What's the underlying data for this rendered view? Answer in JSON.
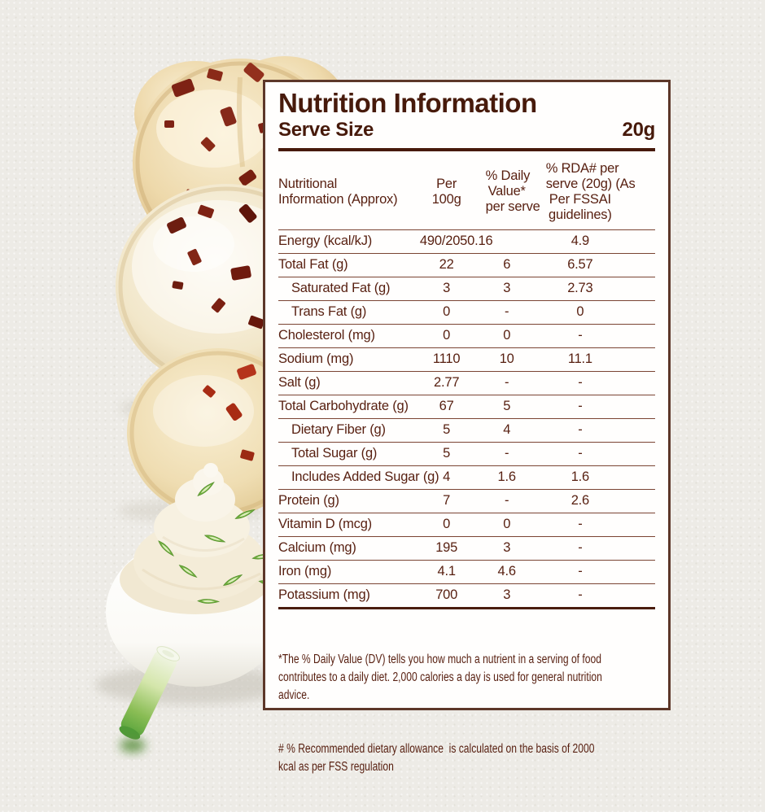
{
  "panel": {
    "title": "Nutrition Information",
    "serve_size_label": "Serve Size",
    "serve_size_value": "20g"
  },
  "table": {
    "headers": [
      "Nutritional\nInformation (Approx)",
      "Per\n100g",
      "% Daily\nValue*\nper serve",
      "% RDA# per\nserve (20g) (As\nPer FSSAI\nguidelines)"
    ],
    "rows": [
      {
        "label": "Energy (kcal/kJ)",
        "indent": false,
        "merge_per100g_dv": true,
        "per_100g": "490/2050.16",
        "daily_value": "",
        "rda": "4.9"
      },
      {
        "label": "Total Fat (g)",
        "indent": false,
        "per_100g": "22",
        "daily_value": "6",
        "rda": "6.57"
      },
      {
        "label": "Saturated Fat (g)",
        "indent": true,
        "per_100g": "3",
        "daily_value": "3",
        "rda": "2.73"
      },
      {
        "label": "Trans Fat (g)",
        "indent": true,
        "per_100g": "0",
        "daily_value": "-",
        "rda": "0"
      },
      {
        "label": "Cholesterol (mg)",
        "indent": false,
        "per_100g": "0",
        "daily_value": "0",
        "rda": "-"
      },
      {
        "label": "Sodium (mg)",
        "indent": false,
        "per_100g": "1110",
        "daily_value": "10",
        "rda": "11.1"
      },
      {
        "label": "Salt (g)",
        "indent": false,
        "per_100g": "2.77",
        "daily_value": "-",
        "rda": "-"
      },
      {
        "label": "Total Carbohydrate (g)",
        "indent": false,
        "per_100g": "67",
        "daily_value": "5",
        "rda": "-"
      },
      {
        "label": "Dietary Fiber (g)",
        "indent": true,
        "per_100g": "5",
        "daily_value": "4",
        "rda": "-"
      },
      {
        "label": "Total Sugar (g)",
        "indent": true,
        "per_100g": "5",
        "daily_value": "-",
        "rda": "-"
      },
      {
        "label": "Includes Added Sugar (g)",
        "indent": true,
        "per_100g": "4",
        "daily_value": "1.6",
        "rda": "1.6"
      },
      {
        "label": "Protein (g)",
        "indent": false,
        "per_100g": "7",
        "daily_value": "-",
        "rda": "2.6"
      },
      {
        "label": "Vitamin D (mcg)",
        "indent": false,
        "per_100g": "0",
        "daily_value": "0",
        "rda": "-"
      },
      {
        "label": "Calcium (mg)",
        "indent": false,
        "per_100g": "195",
        "daily_value": "3",
        "rda": "-"
      },
      {
        "label": "Iron (mg)",
        "indent": false,
        "per_100g": "4.1",
        "daily_value": "4.6",
        "rda": "-"
      },
      {
        "label": "Potassium (mg)",
        "indent": false,
        "per_100g": "700",
        "daily_value": "3",
        "rda": "-"
      }
    ]
  },
  "footnotes": [
    "*The % Daily Value (DV) tells you how much a nutrient in a serving of food\ncontributes to a daily diet. 2,000 calories a day is used for general nutrition\nadvice.",
    "# % Recommended dietary allowance  is calculated on the basis of 2000\nkcal as per FSS regulation"
  ],
  "colors": {
    "title": "#471a0b",
    "table_text": "#571f10",
    "panel_border": "#5d3729",
    "panel_background": "#fffefd",
    "page_background": "#edebe6",
    "chili_flake_dark": "#6f1d10",
    "chili_flake_bright": "#c03a22",
    "bun": "#ecd7a8",
    "cream_dip": "#f5eedb",
    "scallion_green": "#6fae3e"
  },
  "illustration": [
    "chili-flake-bun",
    "flour-dusted-bun",
    "chili-flake-bun-small",
    "mayo-dip-bowl",
    "spring-onion-slices",
    "spring-onion-stalk"
  ]
}
